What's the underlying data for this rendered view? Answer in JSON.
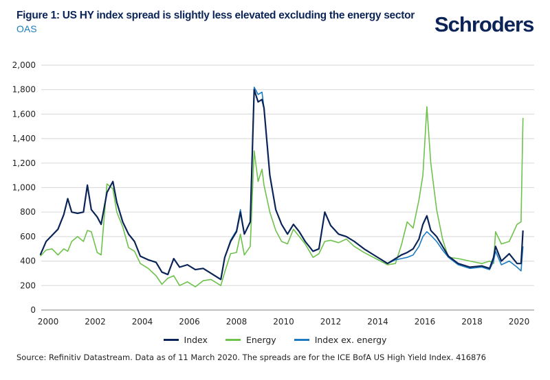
{
  "title": "Figure 1: US HY index spread is slightly less elevated excluding the energy sector",
  "subtitle": "OAS",
  "logo_text": "Schroders",
  "source": "Source: Refinitiv Datastream. Data as of 11 March 2020. The spreads are for the ICE BofA US High Yield Index. 416876",
  "colors": {
    "index": "#0b2458",
    "energy": "#6cc24a",
    "ex_energy": "#1b7bc1",
    "grid": "#dddddd",
    "title": "#0b2458"
  },
  "chart_data": {
    "type": "line",
    "title": "Figure 1: US HY index spread is slightly less elevated excluding the energy sector",
    "ylabel": "OAS",
    "ylim": [
      0,
      2000
    ],
    "yticks": [
      "0",
      "200",
      "400",
      "600",
      "800",
      "1,000",
      "1,200",
      "1,400",
      "1,600",
      "1,800",
      "2,000"
    ],
    "xticks": [
      "2000",
      "2002",
      "2004",
      "2006",
      "2008",
      "2010",
      "2012",
      "2014",
      "2016",
      "2018",
      "2020"
    ],
    "grid": "horizontal",
    "legend": "bottom",
    "x": [
      "1999-09",
      "1999-12",
      "2000-03",
      "2000-06",
      "2000-09",
      "2000-11",
      "2001-01",
      "2001-04",
      "2001-07",
      "2001-09",
      "2001-11",
      "2002-02",
      "2002-04",
      "2002-07",
      "2002-10",
      "2002-12",
      "2003-03",
      "2003-06",
      "2003-09",
      "2003-12",
      "2004-04",
      "2004-08",
      "2004-11",
      "2005-02",
      "2005-05",
      "2005-08",
      "2005-12",
      "2006-04",
      "2006-08",
      "2006-12",
      "2007-05",
      "2007-07",
      "2007-10",
      "2008-01",
      "2008-03",
      "2008-05",
      "2008-08",
      "2008-10",
      "2008-12",
      "2009-02",
      "2009-03",
      "2009-06",
      "2009-09",
      "2009-12",
      "2010-03",
      "2010-06",
      "2010-09",
      "2010-12",
      "2011-04",
      "2011-07",
      "2011-10",
      "2012-01",
      "2012-05",
      "2012-09",
      "2013-01",
      "2013-06",
      "2013-12",
      "2014-06",
      "2014-10",
      "2015-01",
      "2015-04",
      "2015-07",
      "2015-10",
      "2015-12",
      "2016-02",
      "2016-04",
      "2016-07",
      "2016-10",
      "2017-01",
      "2017-06",
      "2017-12",
      "2018-06",
      "2018-10",
      "2018-12",
      "2019-01",
      "2019-04",
      "2019-08",
      "2019-12",
      "2020-02",
      "2020-03"
    ],
    "series": [
      {
        "name": "Index",
        "color": "#0b2458",
        "values": [
          450,
          560,
          610,
          660,
          780,
          910,
          800,
          790,
          800,
          1020,
          820,
          760,
          700,
          960,
          1050,
          880,
          720,
          620,
          560,
          440,
          410,
          390,
          310,
          290,
          420,
          350,
          370,
          330,
          340,
          300,
          250,
          430,
          560,
          640,
          800,
          620,
          720,
          1800,
          1700,
          1720,
          1650,
          1100,
          820,
          700,
          620,
          700,
          640,
          560,
          480,
          500,
          800,
          690,
          620,
          600,
          560,
          500,
          440,
          380,
          420,
          450,
          470,
          500,
          580,
          700,
          770,
          650,
          600,
          520,
          440,
          380,
          350,
          360,
          340,
          430,
          520,
          400,
          460,
          380,
          380,
          650
        ]
      },
      {
        "name": "Energy",
        "color": "#6cc24a",
        "values": [
          440,
          490,
          500,
          450,
          500,
          480,
          560,
          600,
          560,
          650,
          640,
          470,
          450,
          1030,
          990,
          800,
          680,
          510,
          480,
          380,
          340,
          280,
          210,
          260,
          280,
          200,
          230,
          190,
          240,
          250,
          200,
          310,
          460,
          470,
          620,
          450,
          520,
          1300,
          1050,
          1150,
          1020,
          800,
          650,
          560,
          540,
          660,
          600,
          540,
          430,
          460,
          560,
          570,
          550,
          580,
          520,
          470,
          420,
          370,
          380,
          530,
          720,
          670,
          900,
          1100,
          1660,
          1200,
          820,
          580,
          430,
          420,
          400,
          380,
          400,
          380,
          640,
          540,
          560,
          700,
          720,
          1570
        ]
      },
      {
        "name": "Index ex. energy",
        "color": "#1b7bc1",
        "values": [
          450,
          560,
          610,
          660,
          780,
          910,
          800,
          790,
          800,
          1020,
          820,
          760,
          700,
          960,
          1050,
          880,
          720,
          620,
          560,
          440,
          410,
          390,
          310,
          290,
          420,
          350,
          370,
          330,
          340,
          300,
          250,
          430,
          570,
          650,
          820,
          620,
          720,
          1820,
          1760,
          1780,
          1650,
          1100,
          820,
          700,
          620,
          700,
          640,
          560,
          480,
          500,
          800,
          690,
          620,
          600,
          560,
          500,
          440,
          380,
          410,
          420,
          430,
          450,
          520,
          600,
          640,
          610,
          560,
          490,
          430,
          370,
          340,
          350,
          330,
          400,
          480,
          370,
          400,
          350,
          320,
          520
        ]
      }
    ]
  }
}
